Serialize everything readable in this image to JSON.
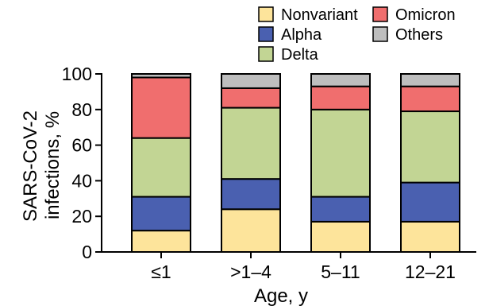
{
  "chart_data": {
    "type": "bar",
    "stacked": true,
    "categories": [
      "≤1",
      ">1–4",
      "5–11",
      "12–21"
    ],
    "series": [
      {
        "name": "Nonvariant",
        "color": "#FDE49B",
        "values": [
          12,
          24,
          17,
          17
        ]
      },
      {
        "name": "Alpha",
        "color": "#4A60B0",
        "values": [
          19,
          17,
          14,
          22
        ]
      },
      {
        "name": "Delta",
        "color": "#C2D594",
        "values": [
          33,
          40,
          49,
          40
        ]
      },
      {
        "name": "Omicron",
        "color": "#F06E6E",
        "values": [
          34,
          11,
          13,
          14
        ]
      },
      {
        "name": "Others",
        "color": "#BEBEBE",
        "values": [
          2,
          8,
          7,
          7
        ]
      }
    ],
    "title": "",
    "xlabel": "Age, y",
    "ylabel_line1": "SARS-CoV-2",
    "ylabel_line2": "infections, %",
    "ylim": [
      0,
      100
    ],
    "yticks": [
      "0",
      "20",
      "40",
      "60",
      "80",
      "100"
    ],
    "grid": false,
    "legend_placement": "top-right"
  }
}
